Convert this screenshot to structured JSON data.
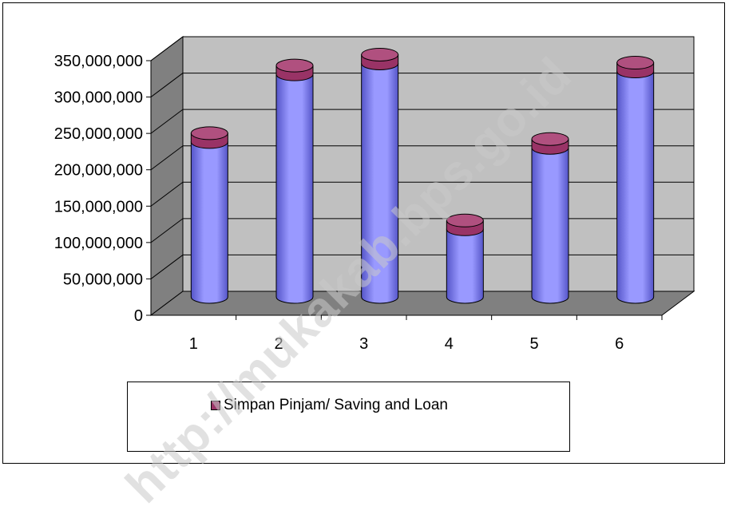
{
  "watermark": "http://mukakab.bps.go.id",
  "legend": {
    "label": "Simpan Pinjam/ Saving and Loan"
  },
  "colors": {
    "cylinder_body": "#9999FF",
    "cylinder_body_dark": "#5555C8",
    "cylinder_top": "#993366",
    "wall": "#C0C0C0",
    "floor": "#808080"
  },
  "chart_data": {
    "type": "bar",
    "style": "3d-cylinder",
    "categories": [
      "1",
      "2",
      "3",
      "4",
      "5",
      "6"
    ],
    "series": [
      {
        "name": "Simpan Pinjam/ Saving and Loan",
        "values": [
          225000000,
          318000000,
          333000000,
          105000000,
          217000000,
          322000000
        ]
      }
    ],
    "ylim": [
      0,
      350000000
    ],
    "yticks": [
      0,
      50000000,
      100000000,
      150000000,
      200000000,
      250000000,
      300000000,
      350000000
    ],
    "ytick_labels": [
      "0",
      "50,000,000",
      "100,000,000",
      "150,000,000",
      "200,000,000",
      "250,000,000",
      "300,000,000",
      "350,000,000"
    ],
    "grid": true,
    "legend_position": "bottom"
  }
}
